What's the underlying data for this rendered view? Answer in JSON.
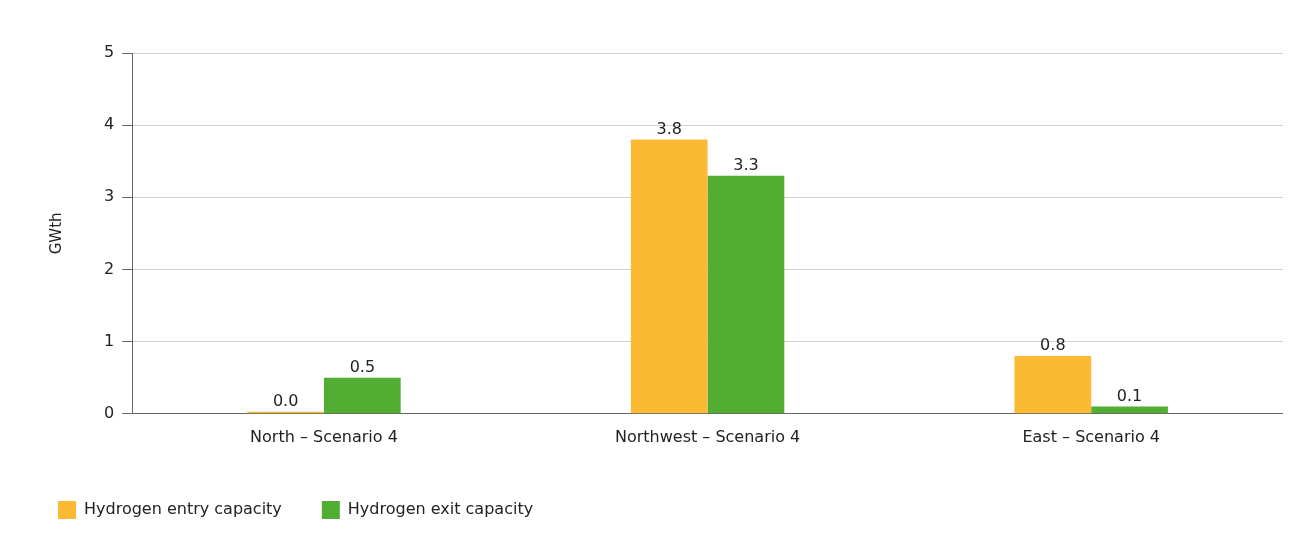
{
  "chart_data": {
    "type": "bar",
    "ylabel": "GWth",
    "categories": [
      "North – Scenario 4",
      "Northwest – Scenario 4",
      "East – Scenario 4"
    ],
    "series": [
      {
        "name": "Hydrogen entry capacity",
        "color": "#fbb934",
        "values": [
          0,
          3.8,
          0.8
        ],
        "value_labels": [
          "0.0",
          "3.8",
          "0.8"
        ]
      },
      {
        "name": "Hydrogen exit capacity",
        "color": "#52ae32",
        "values": [
          0.5,
          3.3,
          0.1
        ],
        "value_labels": [
          "0.5",
          "3.3",
          "0.1"
        ]
      }
    ],
    "ylim": [
      0,
      5
    ],
    "yticks": [
      0,
      1,
      2,
      3,
      4,
      5
    ],
    "grid": "y",
    "legend": "bottom left"
  }
}
